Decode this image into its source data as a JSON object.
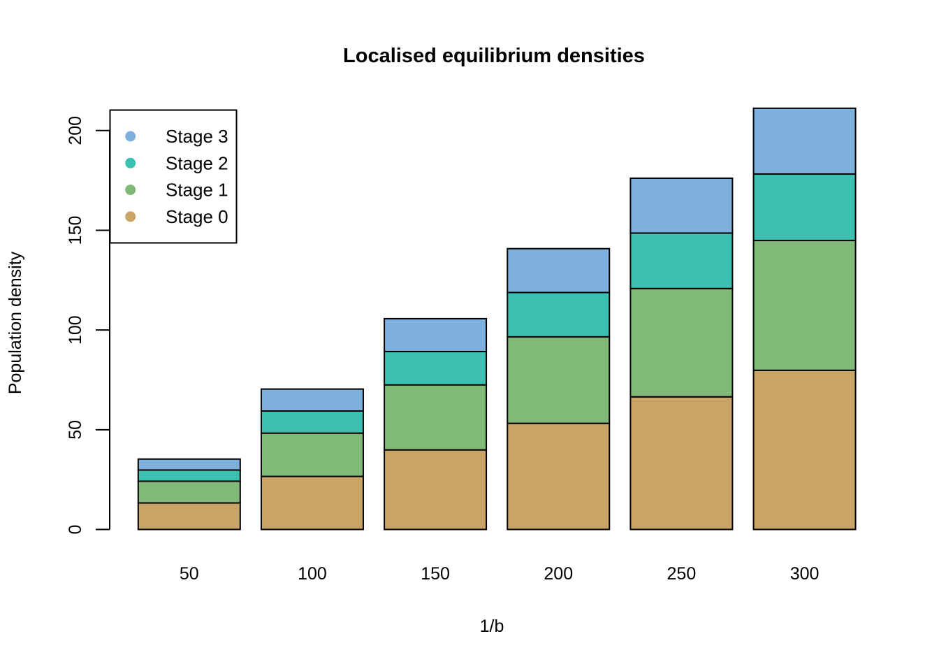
{
  "chart_data": {
    "type": "bar",
    "stacked": true,
    "title": "Localised equilibrium densities",
    "xlabel": "1/b",
    "ylabel": "Population density",
    "categories": [
      "50",
      "100",
      "150",
      "200",
      "250",
      "300"
    ],
    "series": [
      {
        "name": "Stage 0",
        "color": "#C8A467",
        "values": [
          13.3,
          26.6,
          39.9,
          53.2,
          66.5,
          79.8
        ]
      },
      {
        "name": "Stage 1",
        "color": "#81BA78",
        "values": [
          10.9,
          21.7,
          32.6,
          43.4,
          54.3,
          65.1
        ]
      },
      {
        "name": "Stage 2",
        "color": "#3CC0B2",
        "values": [
          5.6,
          11.1,
          16.7,
          22.2,
          27.8,
          33.3
        ]
      },
      {
        "name": "Stage 3",
        "color": "#7DB0DD",
        "values": [
          5.5,
          11.0,
          16.5,
          22.0,
          27.5,
          33.0
        ]
      }
    ],
    "legend": {
      "position": "top-left",
      "entries": [
        "Stage 3",
        "Stage 2",
        "Stage 1",
        "Stage 0"
      ]
    },
    "y_ticks": [
      "0",
      "50",
      "100",
      "150",
      "200"
    ],
    "ylim": [
      0,
      213
    ],
    "grid": false,
    "axis_color": "#000000",
    "bar_border_color": "#000000",
    "background_color": "#FFFFFF"
  }
}
